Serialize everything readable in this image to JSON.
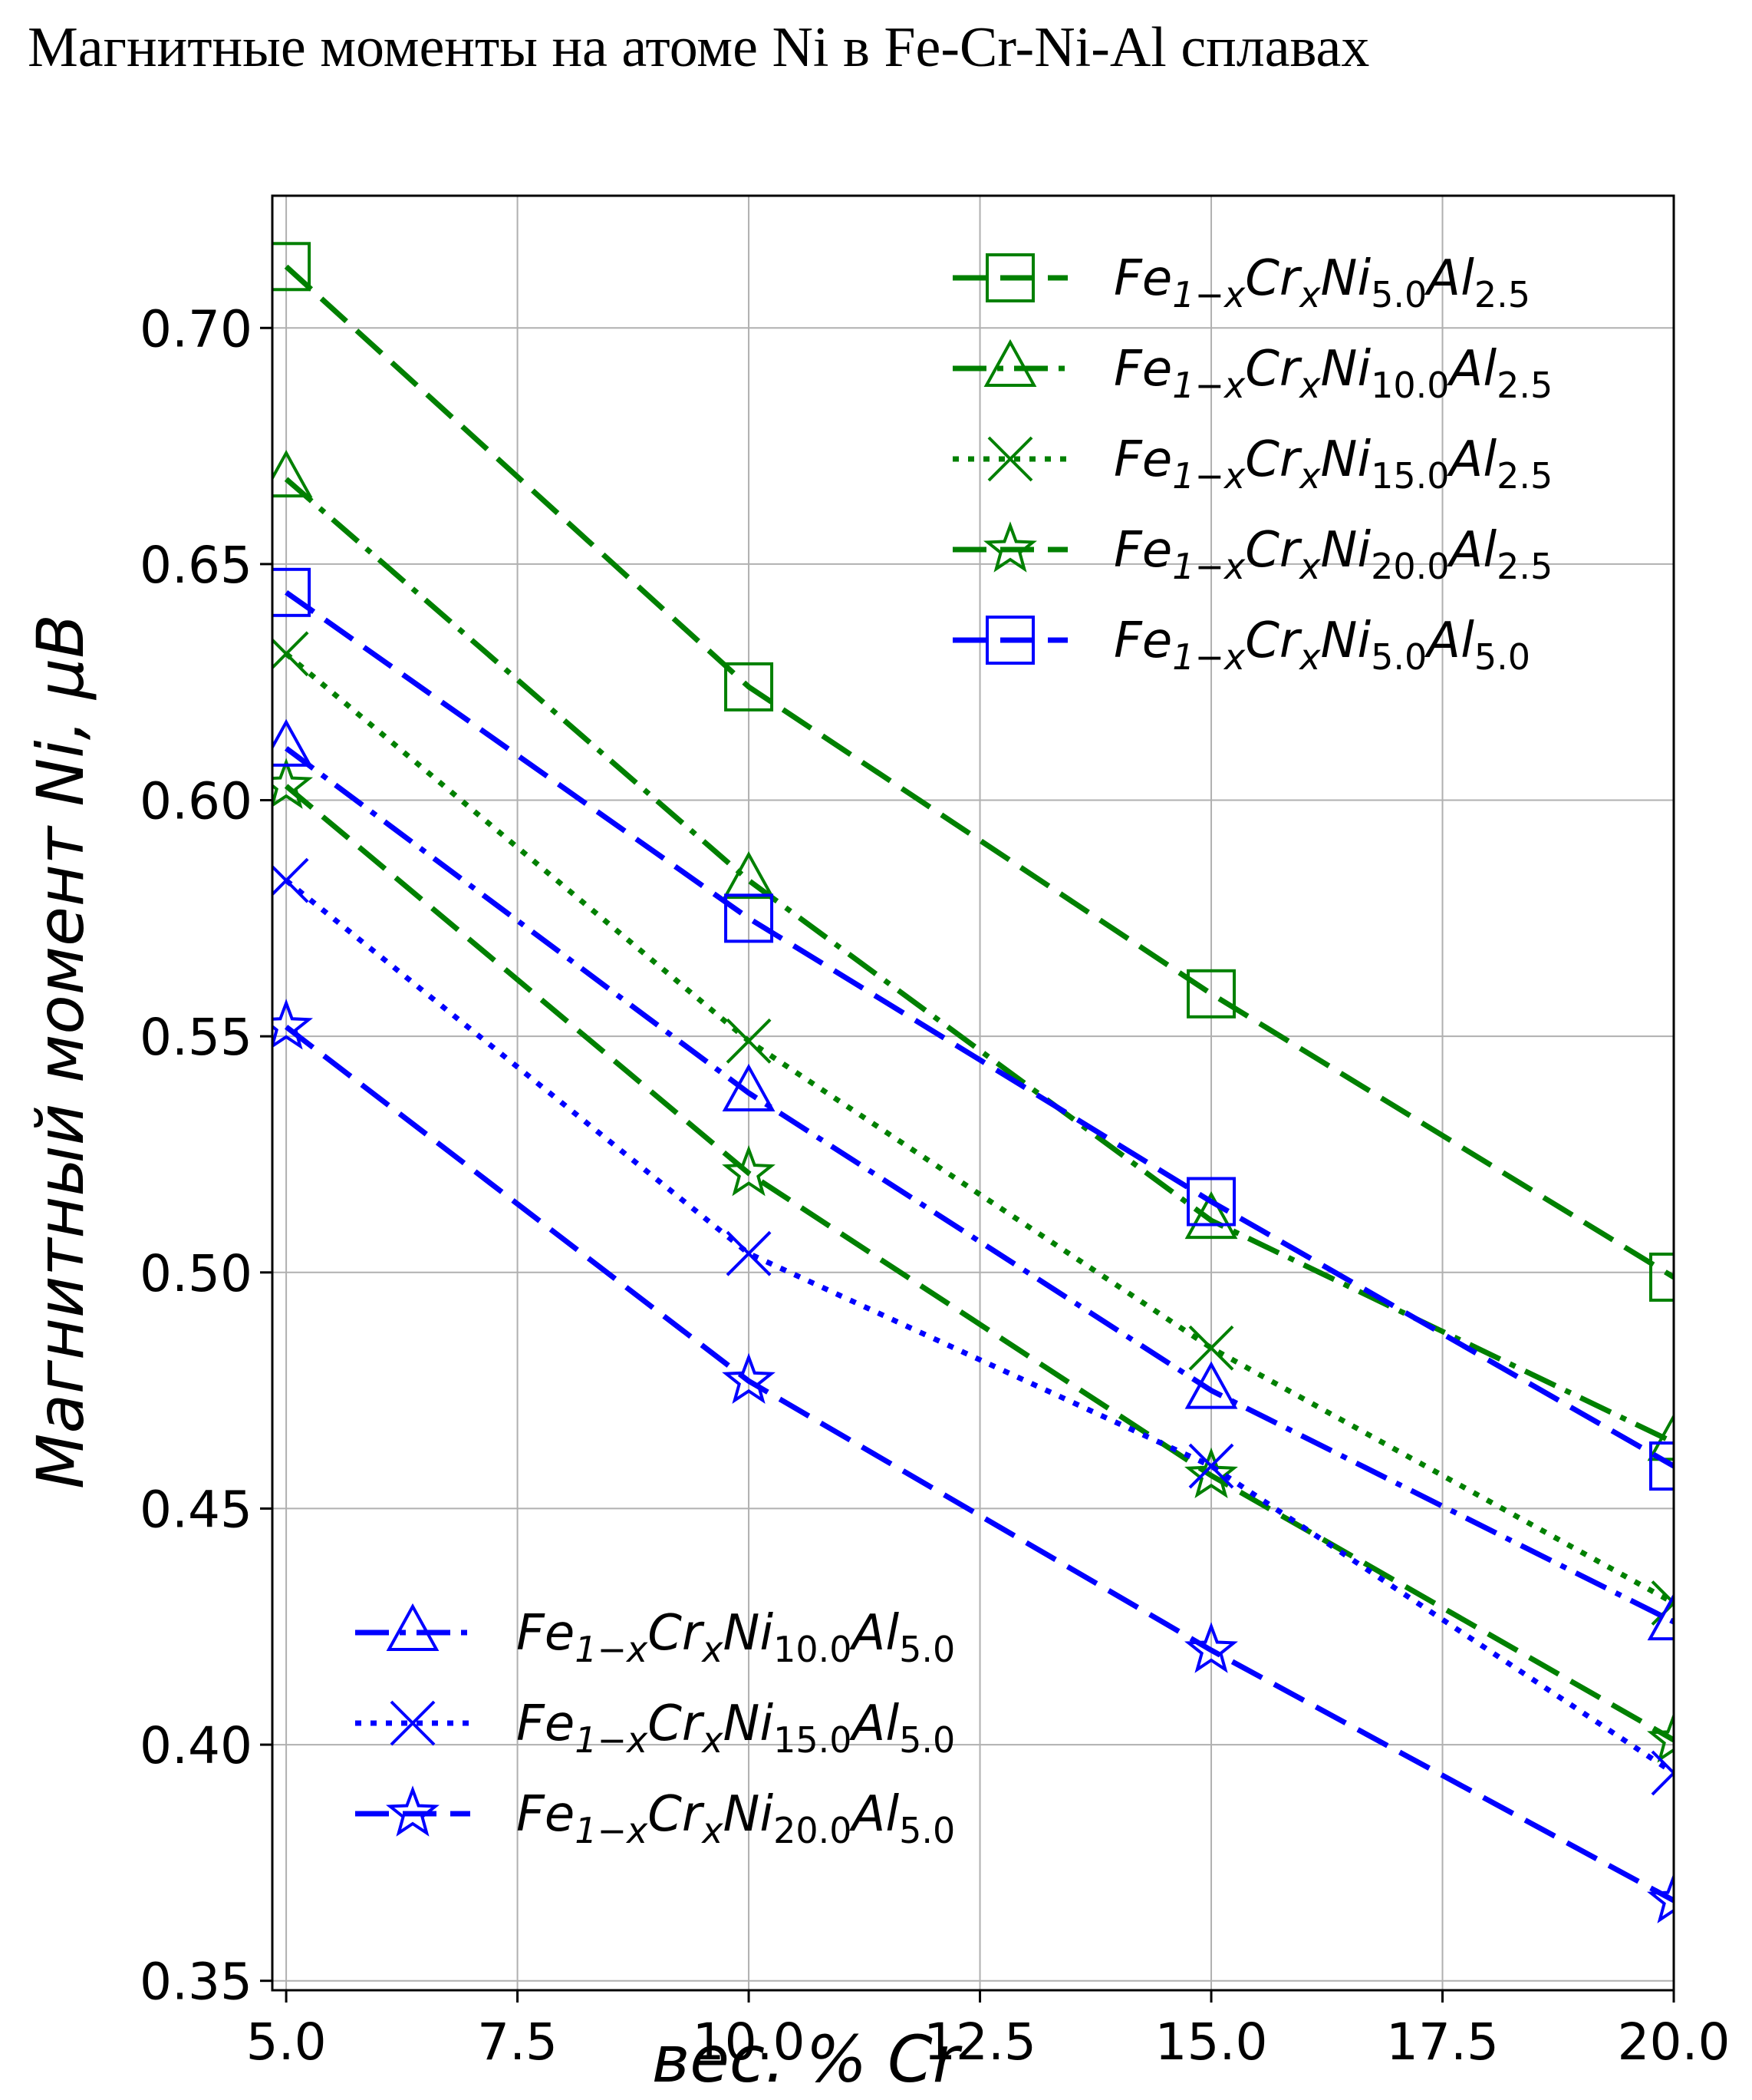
{
  "title": "Магнитные моменты на атоме Ni в Fe-Cr-Ni-Al сплавах",
  "chart_data": {
    "type": "line",
    "title": "Магнитные моменты на атоме Ni в Fe-Cr-Ni-Al сплавах",
    "xlabel": "вес. % Cr",
    "ylabel": "Магнитный момент Ni, μB",
    "xlim": [
      4.85,
      20.0
    ],
    "ylim": [
      0.348,
      0.728
    ],
    "xticks": [
      "5.0",
      "7.5",
      "10.0",
      "12.5",
      "15.0",
      "17.5",
      "20.0"
    ],
    "xtick_values": [
      5.0,
      7.5,
      10.0,
      12.5,
      15.0,
      17.5,
      20.0
    ],
    "yticks": [
      "0.35",
      "0.40",
      "0.45",
      "0.50",
      "0.55",
      "0.60",
      "0.65",
      "0.70"
    ],
    "ytick_values": [
      0.35,
      0.4,
      0.45,
      0.5,
      0.55,
      0.6,
      0.65,
      0.7
    ],
    "grid": true,
    "x": [
      5.0,
      10.0,
      15.0,
      20.0
    ],
    "legends": [
      {
        "placement": "upper-right",
        "series": [
          0,
          1,
          2,
          3,
          4
        ]
      },
      {
        "placement": "lower-left",
        "series": [
          5,
          6,
          7
        ]
      }
    ],
    "series": [
      {
        "name": "Fe1−xCrxNi5.0Al2.5",
        "ni": "5.0",
        "al": "2.5",
        "color": "#008000",
        "linestyle": "dashed",
        "marker": "square",
        "values": [
          0.713,
          0.624,
          0.559,
          0.499
        ]
      },
      {
        "name": "Fe1−xCrxNi10.0Al2.5",
        "ni": "10.0",
        "al": "2.5",
        "color": "#008000",
        "linestyle": "dashdot",
        "marker": "triangle",
        "values": [
          0.668,
          0.583,
          0.511,
          0.464
        ]
      },
      {
        "name": "Fe1−xCrxNi15.0Al2.5",
        "ni": "15.0",
        "al": "2.5",
        "color": "#008000",
        "linestyle": "dotted",
        "marker": "x",
        "values": [
          0.631,
          0.549,
          0.484,
          0.43
        ]
      },
      {
        "name": "Fe1−xCrxNi20.0Al2.5",
        "ni": "20.0",
        "al": "2.5",
        "color": "#008000",
        "linestyle": "dashed",
        "marker": "star",
        "values": [
          0.603,
          0.521,
          0.457,
          0.401
        ]
      },
      {
        "name": "Fe1−xCrxNi5.0Al5.0",
        "ni": "5.0",
        "al": "5.0",
        "color": "#0000ff",
        "linestyle": "dashed",
        "marker": "square",
        "values": [
          0.644,
          0.575,
          0.515,
          0.459
        ]
      },
      {
        "name": "Fe1−xCrxNi10.0Al5.0",
        "ni": "10.0",
        "al": "5.0",
        "color": "#0000ff",
        "linestyle": "dashdot",
        "marker": "triangle",
        "values": [
          0.611,
          0.538,
          0.475,
          0.426
        ]
      },
      {
        "name": "Fe1−xCrxNi15.0Al5.0",
        "ni": "15.0",
        "al": "5.0",
        "color": "#0000ff",
        "linestyle": "dotted",
        "marker": "x",
        "values": [
          0.583,
          0.504,
          0.459,
          0.394
        ]
      },
      {
        "name": "Fe1−xCrxNi20.0Al5.0",
        "ni": "20.0",
        "al": "5.0",
        "color": "#0000ff",
        "linestyle": "dashed",
        "marker": "star",
        "values": [
          0.552,
          0.477,
          0.42,
          0.367
        ]
      }
    ]
  }
}
